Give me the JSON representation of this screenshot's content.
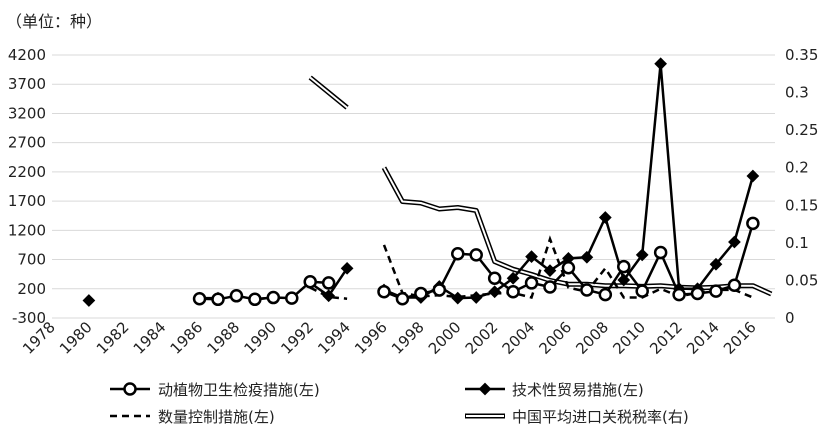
{
  "chart_data": {
    "type": "line",
    "unit_label": "（单位：种）",
    "x_ticks": [
      "1978",
      "1980",
      "1982",
      "1984",
      "1986",
      "1988",
      "1990",
      "1992",
      "1994",
      "1996",
      "1998",
      "2000",
      "2002",
      "2004",
      "2006",
      "2008",
      "2010",
      "2012",
      "2014",
      "2016"
    ],
    "y_left": {
      "min": -300,
      "max": 4200,
      "ticks": [
        "-300",
        "200",
        "700",
        "1200",
        "1700",
        "2200",
        "2700",
        "3200",
        "3700",
        "4200"
      ]
    },
    "y_right": {
      "min": 0,
      "max": 0.35,
      "ticks": [
        "0",
        "0.05",
        "0.1",
        "0.15",
        "0.2",
        "0.25",
        "0.3",
        "0.35"
      ]
    },
    "series": [
      {
        "name": "动植物卫生检疫措施(左)",
        "style": "circle-solid",
        "axis": "left",
        "color": "#000000",
        "points": [
          [
            1986,
            30
          ],
          [
            1987,
            20
          ],
          [
            1988,
            80
          ],
          [
            1989,
            20
          ],
          [
            1990,
            50
          ],
          [
            1991,
            40
          ],
          [
            1992,
            320
          ],
          [
            1993,
            300
          ],
          null,
          [
            1996,
            150
          ],
          [
            1997,
            30
          ],
          [
            1998,
            120
          ],
          [
            1999,
            180
          ],
          [
            2000,
            800
          ],
          [
            2001,
            780
          ],
          [
            2002,
            380
          ],
          [
            2003,
            150
          ],
          [
            2004,
            300
          ],
          [
            2005,
            230
          ],
          [
            2006,
            560
          ],
          [
            2007,
            180
          ],
          [
            2008,
            100
          ],
          [
            2009,
            580
          ],
          [
            2010,
            160
          ],
          [
            2011,
            820
          ],
          [
            2012,
            100
          ],
          [
            2013,
            120
          ],
          [
            2014,
            160
          ],
          [
            2015,
            260
          ],
          [
            2016,
            1320
          ]
        ]
      },
      {
        "name": "技术性贸易措施(左)",
        "style": "diamond-solid",
        "axis": "left",
        "color": "#000000",
        "points": [
          [
            1980,
            0
          ],
          null,
          [
            1986,
            40
          ],
          [
            1987,
            40
          ],
          [
            1988,
            null
          ],
          [
            1989,
            20
          ],
          [
            1990,
            50
          ],
          [
            1991,
            null
          ],
          [
            1992,
            300
          ],
          [
            1993,
            80
          ],
          [
            1994,
            550
          ],
          null,
          [
            1996,
            180
          ],
          [
            1997,
            50
          ],
          [
            1998,
            50
          ],
          [
            1999,
            240
          ],
          [
            2000,
            40
          ],
          [
            2001,
            50
          ],
          [
            2002,
            150
          ],
          [
            2003,
            380
          ],
          [
            2004,
            750
          ],
          [
            2005,
            510
          ],
          [
            2006,
            720
          ],
          [
            2007,
            740
          ],
          [
            2008,
            1420
          ],
          [
            2009,
            350
          ],
          [
            2010,
            780
          ],
          [
            2011,
            4050
          ],
          [
            2012,
            200
          ],
          [
            2013,
            200
          ],
          [
            2014,
            620
          ],
          [
            2015,
            1000
          ],
          [
            2016,
            2130
          ]
        ]
      },
      {
        "name": "数量控制措施(左)",
        "style": "dashed",
        "axis": "left",
        "color": "#000000",
        "points": [
          [
            1992,
            220
          ],
          [
            1993,
            60
          ],
          [
            1994,
            30
          ],
          null,
          [
            1996,
            950
          ],
          [
            1997,
            130
          ],
          [
            1998,
            70
          ],
          [
            1999,
            90
          ],
          [
            2000,
            60
          ],
          [
            2001,
            90
          ],
          [
            2002,
            120
          ],
          [
            2003,
            130
          ],
          [
            2004,
            50
          ],
          [
            2005,
            1050
          ],
          [
            2006,
            220
          ],
          [
            2007,
            150
          ],
          [
            2008,
            550
          ],
          [
            2009,
            50
          ],
          [
            2010,
            50
          ],
          [
            2011,
            200
          ],
          [
            2012,
            70
          ],
          [
            2013,
            130
          ],
          [
            2014,
            180
          ],
          [
            2015,
            180
          ],
          [
            2016,
            50
          ]
        ]
      },
      {
        "name": "中国平均进口关税税率(右)",
        "style": "double-line",
        "axis": "right",
        "color": "#000000",
        "points": [
          [
            1992,
            0.32
          ],
          [
            1993,
            0.3
          ],
          [
            1994,
            0.28
          ],
          null,
          [
            1996,
            0.2
          ],
          [
            1997,
            0.155
          ],
          [
            1998,
            0.153
          ],
          [
            1999,
            0.145
          ],
          [
            2000,
            0.147
          ],
          [
            2001,
            0.143
          ],
          [
            2002,
            0.075
          ],
          [
            2003,
            0.065
          ],
          [
            2004,
            0.058
          ],
          [
            2005,
            0.05
          ],
          [
            2006,
            0.045
          ],
          [
            2007,
            0.045
          ],
          [
            2008,
            0.043
          ],
          [
            2009,
            0.043
          ],
          [
            2010,
            0.042
          ],
          [
            2011,
            0.043
          ],
          [
            2012,
            0.041
          ],
          [
            2013,
            0.04
          ],
          [
            2014,
            0.041
          ],
          [
            2015,
            0.043
          ],
          [
            2016,
            0.043
          ],
          [
            2017,
            0.032
          ]
        ]
      }
    ],
    "legend": {
      "position": "bottom",
      "columns": 2
    }
  }
}
